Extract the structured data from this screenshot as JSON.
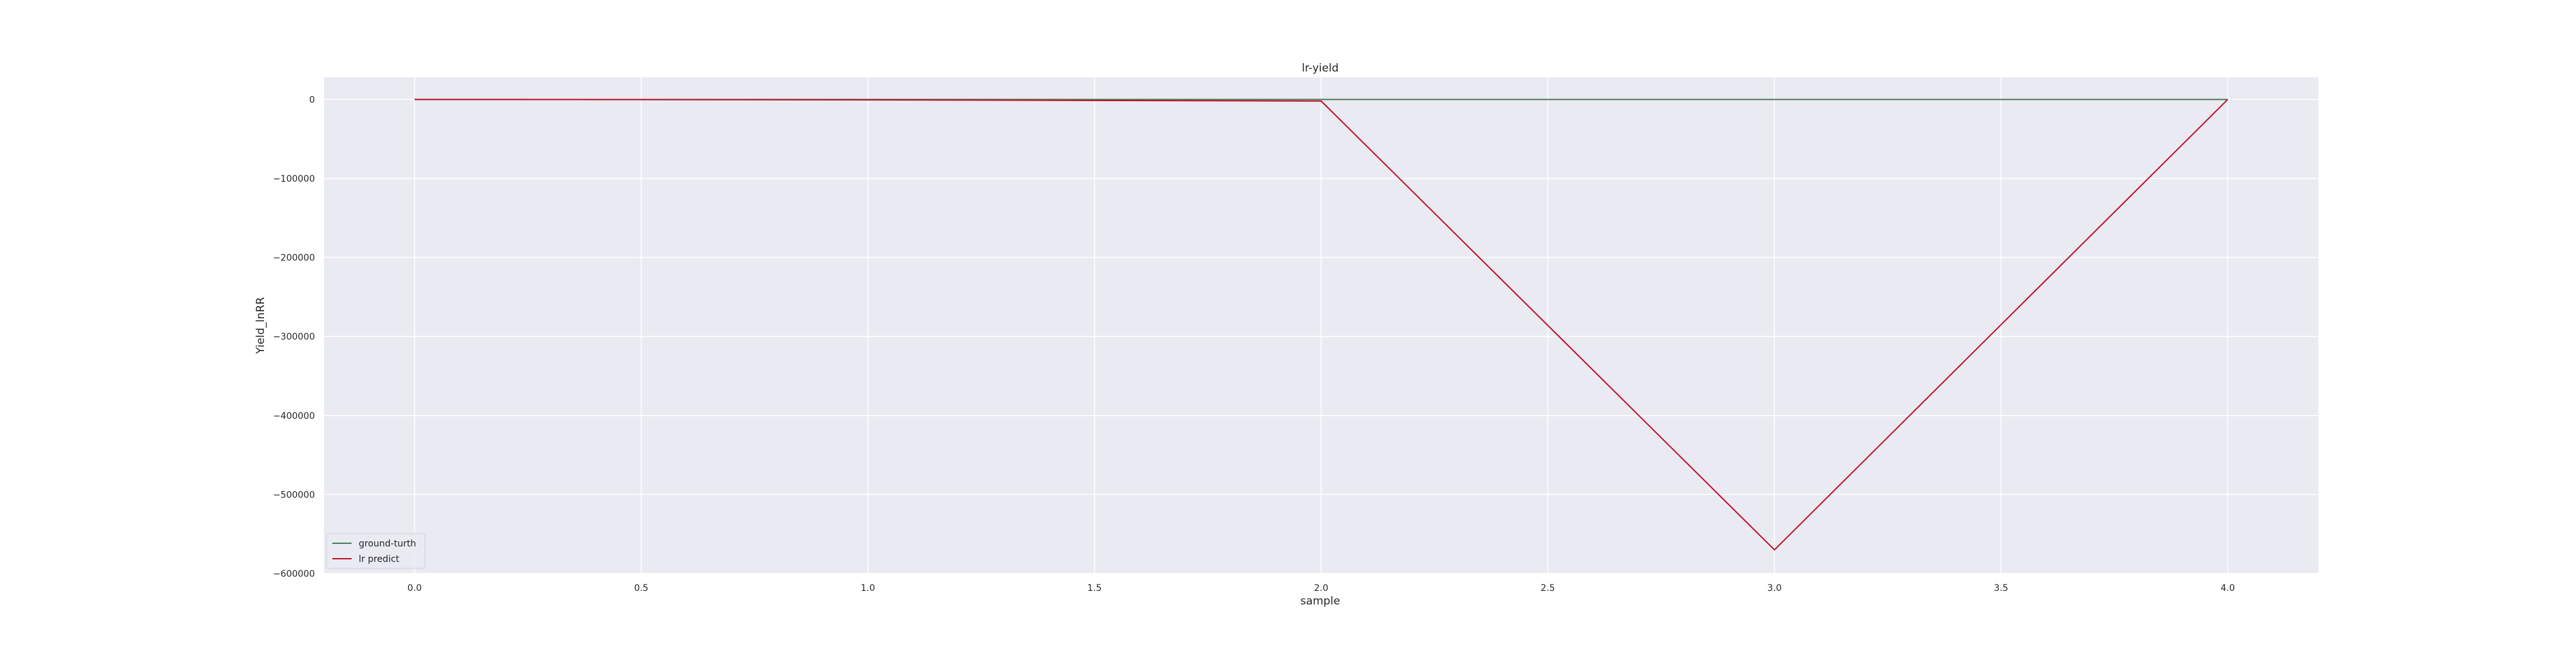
{
  "chart_data": {
    "type": "line",
    "title": "lr-yield",
    "xlabel": "sample",
    "ylabel": "Yield_lnRR",
    "x": [
      0,
      1,
      2,
      3,
      4
    ],
    "xlim": [
      -0.2,
      4.2
    ],
    "ylim": [
      -600000,
      28000
    ],
    "x_ticks": [
      0.0,
      0.5,
      1.0,
      1.5,
      2.0,
      2.5,
      3.0,
      3.5,
      4.0
    ],
    "x_tick_labels": [
      "0.0",
      "0.5",
      "1.0",
      "1.5",
      "2.0",
      "2.5",
      "3.0",
      "3.5",
      "4.0"
    ],
    "y_ticks": [
      0,
      -100000,
      -200000,
      -300000,
      -400000,
      -500000,
      -600000
    ],
    "y_tick_labels": [
      "0",
      "−100000",
      "−200000",
      "−300000",
      "−400000",
      "−500000",
      "−600000"
    ],
    "grid": true,
    "legend_position": "lower-left",
    "background_color": "#eaeaf2",
    "grid_color": "#ffffff",
    "series": [
      {
        "name": "ground-turth",
        "color": "#4c7a52",
        "values": [
          0,
          0,
          0,
          0,
          0
        ]
      },
      {
        "name": "lr predict",
        "color": "#c0102a",
        "values": [
          0,
          -500,
          -2000,
          -570000,
          0
        ]
      }
    ]
  }
}
